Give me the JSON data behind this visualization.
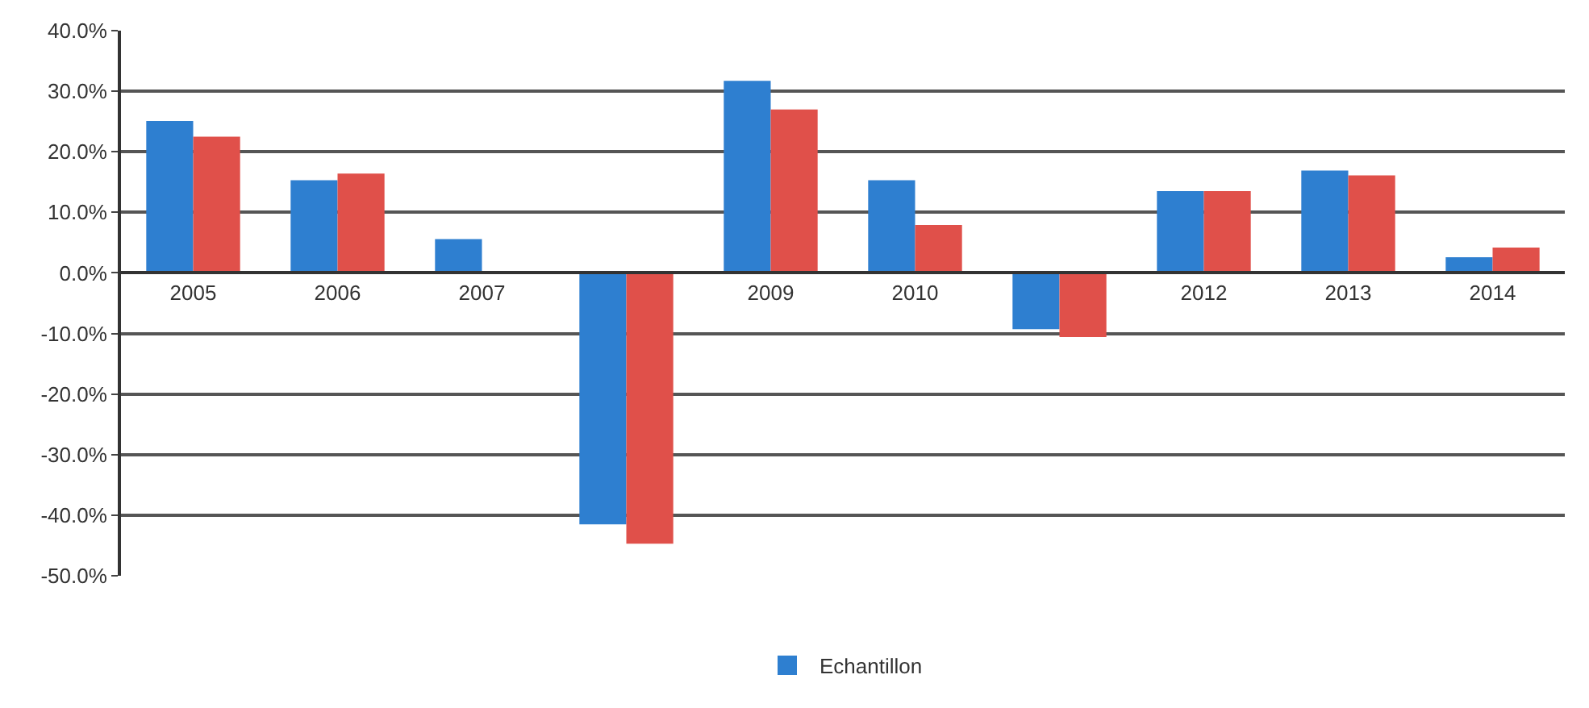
{
  "chart_data": {
    "type": "bar",
    "categories": [
      "2005",
      "2006",
      "2007",
      null,
      "2009",
      "2010",
      null,
      "2012",
      "2013",
      "2014"
    ],
    "series": [
      {
        "name": "Echantillon",
        "color": "#2e7fd0",
        "values": [
          25.1,
          15.3,
          5.6,
          -41.5,
          31.7,
          15.3,
          -9.3,
          13.5,
          16.9,
          2.6
        ]
      },
      {
        "color": "#e0504a",
        "values": [
          22.5,
          16.4,
          null,
          -44.7,
          27.0,
          7.9,
          -10.6,
          13.5,
          16.1,
          4.2
        ]
      }
    ],
    "ylim": [
      -50,
      40
    ],
    "yticks": [
      {
        "value": -50,
        "label": "-50.0%"
      },
      {
        "value": -40,
        "label": "-40.0%"
      },
      {
        "value": -30,
        "label": "-30.0%"
      },
      {
        "value": -20,
        "label": "-20.0%"
      },
      {
        "value": -10,
        "label": "-10.0%"
      },
      {
        "value": 0,
        "label": "0.0%"
      },
      {
        "value": 10,
        "label": "10.0%"
      },
      {
        "value": 20,
        "label": "20.0%"
      },
      {
        "value": 30,
        "label": "30.0%"
      },
      {
        "value": 40,
        "label": "40.0%"
      }
    ],
    "grid": "y",
    "legend": "bottom"
  }
}
